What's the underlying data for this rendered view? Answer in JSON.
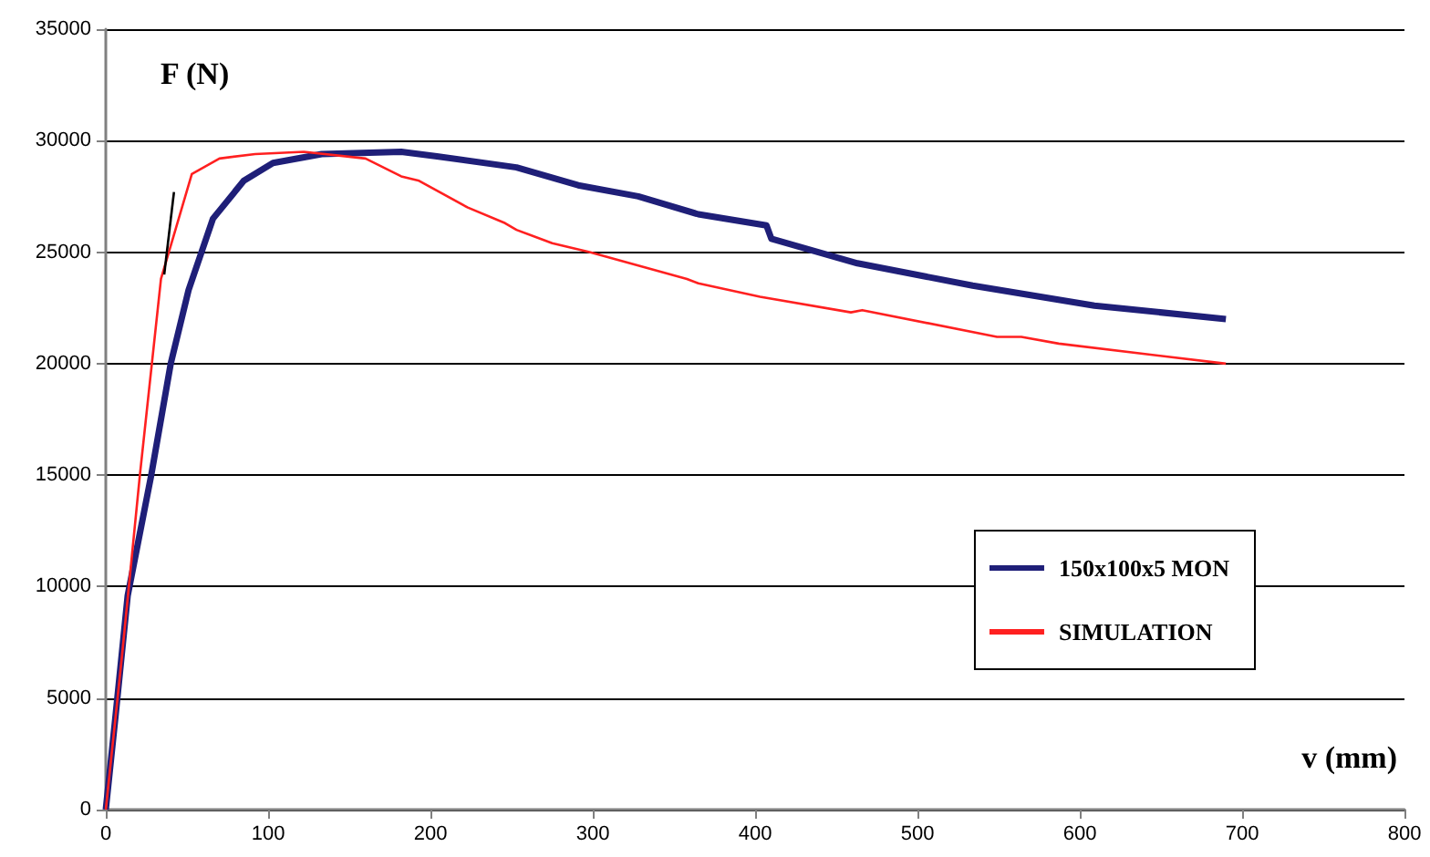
{
  "chart_data": {
    "type": "line",
    "xlabel": "v (mm)",
    "ylabel": "F (N)",
    "xlim": [
      0,
      800
    ],
    "xticks": [
      0,
      100,
      200,
      300,
      400,
      500,
      600,
      700,
      800
    ],
    "ylim": [
      0,
      35000
    ],
    "yticks": [
      0,
      5000,
      10000,
      15000,
      20000,
      25000,
      30000,
      35000
    ],
    "grid": "y",
    "legend": "bottom right",
    "marker": "none",
    "line_style": "solid",
    "series": [
      {
        "name": "150x100x5 MON",
        "color": "#1f1f78",
        "x": [
          0,
          6,
          13.5,
          28,
          40,
          51,
          66,
          85,
          103,
          133,
          182,
          204,
          253,
          291,
          328,
          365,
          407,
          410,
          463,
          534,
          609,
          690
        ],
        "values": [
          0,
          4200,
          9600,
          15000,
          20000,
          23300,
          26500,
          28200,
          29000,
          29400,
          29500,
          29300,
          28800,
          28000,
          27500,
          26700,
          26200,
          25600,
          24500,
          23500,
          22600,
          22000
        ]
      },
      {
        "name": "SIMULATION",
        "color": "#ff2020",
        "x": [
          0,
          10,
          21,
          34,
          53,
          70,
          92,
          122,
          160,
          182,
          193,
          223,
          246,
          253,
          275,
          298,
          328,
          358,
          365,
          403,
          459,
          466,
          549,
          564,
          587,
          690
        ],
        "values": [
          0,
          6900,
          15000,
          23800,
          28500,
          29200,
          29400,
          29500,
          29200,
          28400,
          28200,
          27000,
          26300,
          26000,
          25400,
          25000,
          24400,
          23800,
          23600,
          23000,
          22300,
          22400,
          21200,
          21200,
          20900,
          20000
        ]
      },
      {
        "color": "#000000",
        "x": [
          36,
          42
        ],
        "values": [
          24000,
          27700
        ]
      }
    ]
  }
}
